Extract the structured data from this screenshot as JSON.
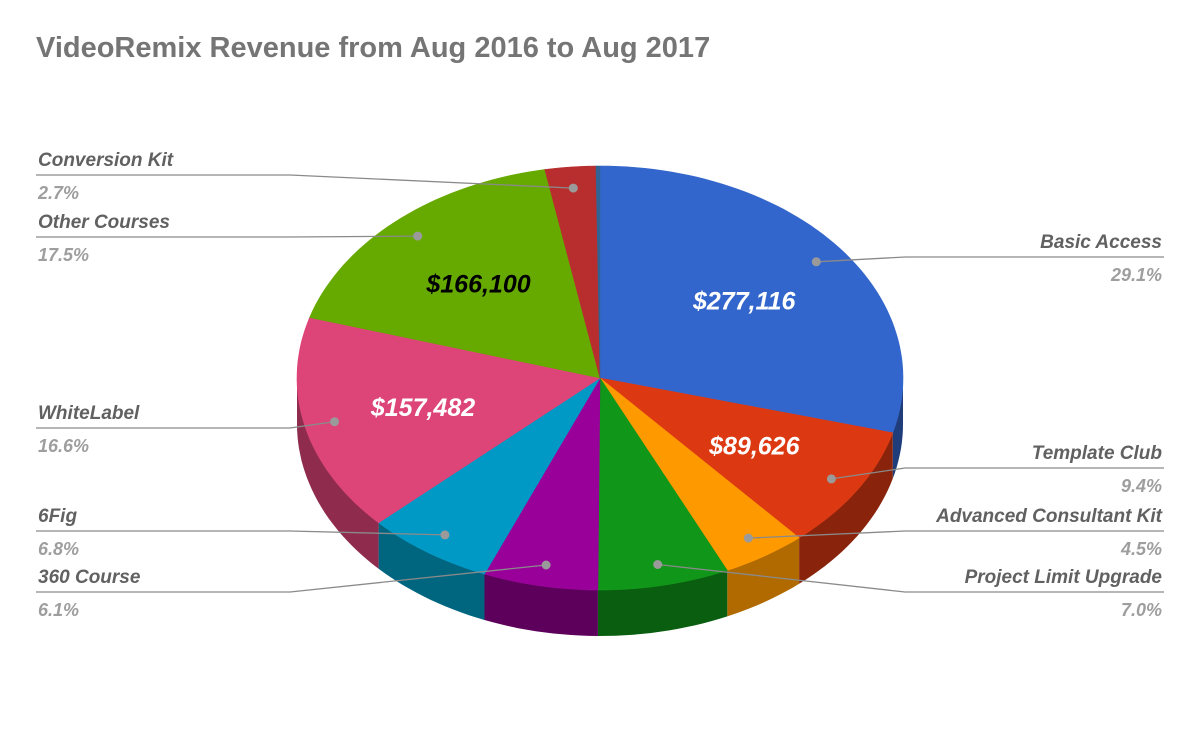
{
  "chart_data": {
    "type": "pie",
    "title": "VideoRemix Revenue from Aug 2016 to Aug 2017",
    "style": "3d",
    "legend": "labeled callouts",
    "slices": [
      {
        "label": "Basic Access",
        "percent": "29.1%",
        "value": 277116,
        "value_label": "$277,116",
        "color": "#3366cc",
        "side_color": "#1f3d7a",
        "value_color": "#ffffff"
      },
      {
        "label": "Template Club",
        "percent": "9.4%",
        "value": 89626,
        "value_label": "$89,626",
        "color": "#dc3912",
        "side_color": "#8a230b",
        "value_color": "#ffffff"
      },
      {
        "label": "Advanced Consultant Kit",
        "percent": "4.5%",
        "value": 42855,
        "color": "#ff9900",
        "side_color": "#b06a00"
      },
      {
        "label": "Project Limit Upgrade",
        "percent": "7.0%",
        "value": 66662,
        "color": "#109618",
        "side_color": "#0a5e0f"
      },
      {
        "label": "360 Course",
        "percent": "6.1%",
        "value": 58091,
        "color": "#990099",
        "side_color": "#5c005c"
      },
      {
        "label": "6Fig",
        "percent": "6.8%",
        "value": 64758,
        "color": "#0099c6",
        "side_color": "#006680"
      },
      {
        "label": "WhiteLabel",
        "percent": "16.6%",
        "value": 157482,
        "value_label": "$157,482",
        "color": "#dd4477",
        "side_color": "#8f2c4d",
        "value_color": "#ffffff"
      },
      {
        "label": "Other Courses",
        "percent": "17.5%",
        "value": 166100,
        "value_label": "$166,100",
        "color": "#66aa00",
        "side_color": "#427000",
        "value_color": "#000000"
      },
      {
        "label": "Conversion Kit",
        "percent": "2.7%",
        "value": 25713,
        "color": "#b82e2e",
        "side_color": "#7a1e1e"
      },
      {
        "label": "",
        "percent": "",
        "value": 2000,
        "color": "#316395",
        "side_color": "#1d3b59"
      }
    ]
  }
}
